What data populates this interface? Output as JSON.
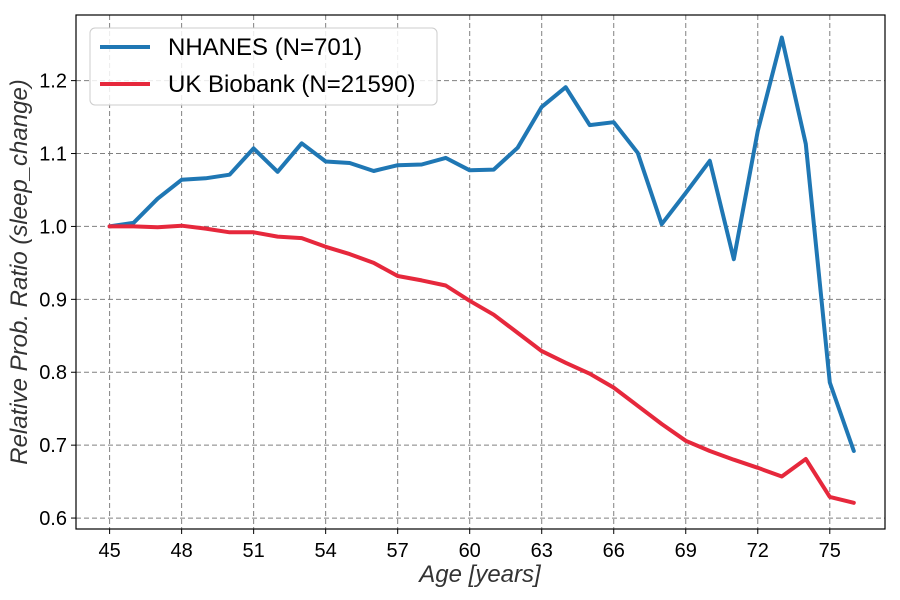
{
  "chart_data": {
    "type": "line",
    "xlabel": "Age [years]",
    "ylabel": "Relative Prob. Ratio (sleep_change)",
    "xlim": [
      43.6,
      77.3
    ],
    "ylim": [
      0.585,
      1.29
    ],
    "xticks": [
      45,
      48,
      51,
      54,
      57,
      60,
      63,
      66,
      69,
      72,
      75
    ],
    "yticks": [
      0.6,
      0.7,
      0.8,
      0.9,
      1.0,
      1.1,
      1.2
    ],
    "ytick_labels": [
      "0.6",
      "0.7",
      "0.8",
      "0.9",
      "1.0",
      "1.1",
      "1.2"
    ],
    "grid": true,
    "legend_position": "top-left",
    "series": [
      {
        "name": "NHANES (N=701)",
        "color": "#1f77b4",
        "x": [
          45,
          46,
          47,
          48,
          49,
          50,
          51,
          52,
          53,
          54,
          55,
          56,
          57,
          58,
          59,
          60,
          61,
          62,
          63,
          64,
          65,
          66,
          67,
          68,
          69,
          70,
          71,
          72,
          73,
          74,
          75,
          76
        ],
        "y": [
          1.0,
          1.005,
          1.038,
          1.064,
          1.066,
          1.071,
          1.107,
          1.075,
          1.114,
          1.089,
          1.087,
          1.076,
          1.084,
          1.085,
          1.094,
          1.077,
          1.078,
          1.108,
          1.164,
          1.191,
          1.139,
          1.143,
          1.101,
          1.003,
          1.046,
          1.09,
          0.955,
          1.131,
          1.259,
          1.113,
          0.786,
          0.692
        ]
      },
      {
        "name": "UK Biobank (N=21590)",
        "color": "#e6283c",
        "x": [
          45,
          46,
          47,
          48,
          49,
          50,
          51,
          52,
          53,
          54,
          55,
          56,
          57,
          58,
          59,
          60,
          61,
          62,
          63,
          64,
          65,
          66,
          67,
          68,
          69,
          70,
          71,
          72,
          73,
          74,
          75,
          76
        ],
        "y": [
          1.0,
          1.0,
          0.999,
          1.001,
          0.997,
          0.992,
          0.992,
          0.986,
          0.984,
          0.972,
          0.962,
          0.95,
          0.932,
          0.926,
          0.919,
          0.898,
          0.879,
          0.854,
          0.829,
          0.813,
          0.798,
          0.779,
          0.754,
          0.729,
          0.706,
          0.692,
          0.68,
          0.669,
          0.657,
          0.681,
          0.629,
          0.621
        ]
      }
    ]
  }
}
